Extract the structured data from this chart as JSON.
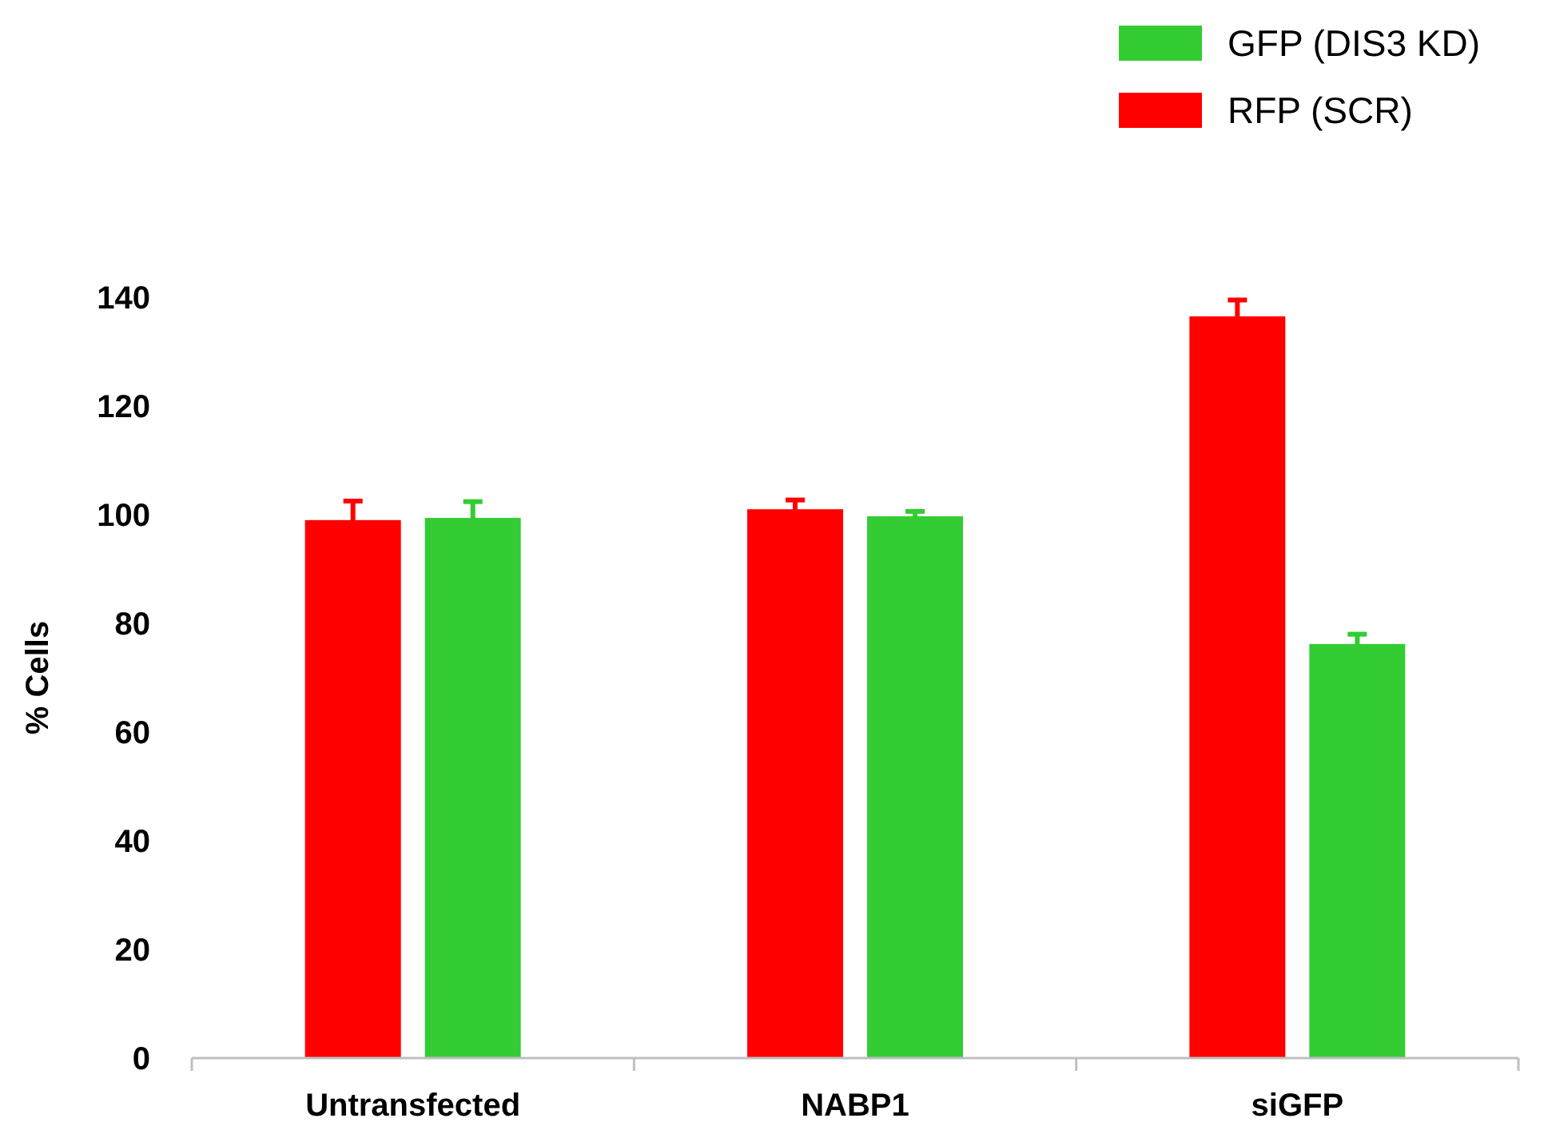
{
  "chart_data": {
    "type": "bar",
    "ylabel": "% Cells",
    "categories": [
      "Untransfected",
      "NABP1",
      "siGFP"
    ],
    "series": [
      {
        "name": "RFP (SCR)",
        "color": "#ff0000",
        "values": [
          99,
          101,
          136.5
        ],
        "errors": [
          3.5,
          1.7,
          3
        ]
      },
      {
        "name": "GFP (DIS3 KD)",
        "color": "#33cc33",
        "values": [
          99.4,
          99.7,
          76.2
        ],
        "errors": [
          3,
          0.9,
          1.8
        ]
      }
    ],
    "ylim": [
      0,
      140
    ],
    "yticks": [
      0,
      20,
      40,
      60,
      80,
      100,
      120,
      140
    ],
    "grid": false,
    "legend": "top right"
  }
}
